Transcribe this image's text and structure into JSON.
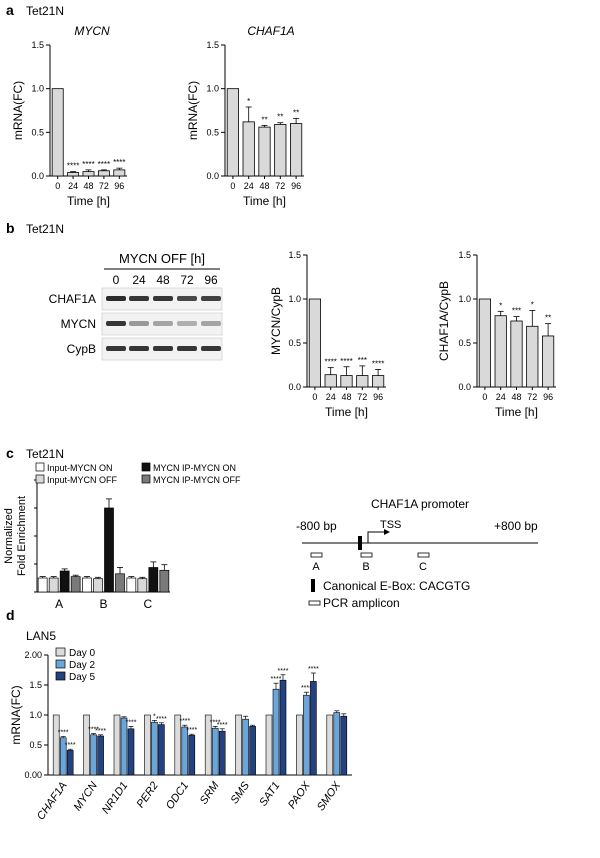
{
  "colors": {
    "light": "#d9d9d9",
    "black": "#111111",
    "gray": "#7a7a7a",
    "white": "#ffffff",
    "day0": "#dcdcdc",
    "day2": "#6aa6dc",
    "day5": "#23427f",
    "lane": "#f2f2f2",
    "ebox": "#000000"
  },
  "panel_a": {
    "label": "a",
    "cell_line": "Tet21N"
  },
  "panel_b": {
    "label": "b",
    "cell_line": "Tet21N",
    "blot": {
      "header": "MYCN OFF [h]",
      "timepoints": [
        "0",
        "24",
        "48",
        "72",
        "96"
      ],
      "rows": [
        {
          "label": "CHAF1A",
          "intensity": [
            0.85,
            0.8,
            0.8,
            0.72,
            0.75
          ]
        },
        {
          "label": "MYCN",
          "intensity": [
            0.8,
            0.35,
            0.3,
            0.25,
            0.3
          ]
        },
        {
          "label": "CypB",
          "intensity": [
            0.8,
            0.8,
            0.8,
            0.8,
            0.8
          ]
        }
      ]
    }
  },
  "panel_c": {
    "label": "c",
    "cell_line": "Tet21N",
    "legend": [
      "Input-MYCN ON",
      "Input-MYCN OFF",
      "MYCN IP-MYCN ON",
      "MYCN IP-MYCN OFF"
    ],
    "promoter": {
      "title": "CHAF1A promoter",
      "left_label": "-800 bp",
      "right_label": "+800 bp",
      "tss_label": "TSS",
      "amplicons": [
        "A",
        "B",
        "C"
      ],
      "ebox_label": "Canonical E-Box: CACGTG",
      "amplicon_label": "PCR amplicon"
    }
  },
  "panel_d": {
    "label": "d",
    "cell_line": "LAN5"
  },
  "chart_data": [
    {
      "id": "a-mycn",
      "type": "bar",
      "title": "MYCN",
      "xlabel": "Time [h]",
      "ylabel": "mRNA(FC)",
      "categories": [
        "0",
        "24",
        "48",
        "72",
        "96"
      ],
      "values": [
        1.0,
        0.04,
        0.05,
        0.06,
        0.07
      ],
      "errors": [
        0,
        0.01,
        0.02,
        0.01,
        0.02
      ],
      "significance": [
        "",
        "****",
        "****",
        "****",
        "****"
      ],
      "ylim": [
        0,
        1.5
      ],
      "yticks": [
        "0.0",
        "0.5",
        "1.0",
        "1.5"
      ]
    },
    {
      "id": "a-chaf1a",
      "type": "bar",
      "title": "CHAF1A",
      "xlabel": "Time [h]",
      "ylabel": "mRNA(FC)",
      "categories": [
        "0",
        "24",
        "48",
        "72",
        "96"
      ],
      "values": [
        1.0,
        0.62,
        0.56,
        0.59,
        0.6
      ],
      "errors": [
        0,
        0.17,
        0.02,
        0.02,
        0.06
      ],
      "significance": [
        "",
        "*",
        "**",
        "**",
        "**"
      ],
      "ylim": [
        0,
        1.5
      ],
      "yticks": [
        "0.0",
        "0.5",
        "1.0",
        "1.5"
      ]
    },
    {
      "id": "b-mycn-cypb",
      "type": "bar",
      "xlabel": "Time [h]",
      "ylabel": "MYCN/CypB",
      "categories": [
        "0",
        "24",
        "48",
        "72",
        "96"
      ],
      "values": [
        1.0,
        0.14,
        0.13,
        0.13,
        0.13
      ],
      "errors": [
        0,
        0.08,
        0.1,
        0.11,
        0.07
      ],
      "significance": [
        "",
        "****",
        "****",
        "***",
        "****"
      ],
      "ylim": [
        0,
        1.5
      ],
      "yticks": [
        "0.0",
        "0.5",
        "1.0",
        "1.5"
      ]
    },
    {
      "id": "b-chaf1a-cypb",
      "type": "bar",
      "xlabel": "Time [h]",
      "ylabel": "CHAF1A/CypB",
      "categories": [
        "0",
        "24",
        "48",
        "72",
        "96"
      ],
      "values": [
        1.0,
        0.81,
        0.75,
        0.69,
        0.58
      ],
      "errors": [
        0,
        0.05,
        0.05,
        0.18,
        0.14
      ],
      "significance": [
        "",
        "*",
        "***",
        "*",
        "**"
      ],
      "ylim": [
        0,
        1.5
      ],
      "yticks": [
        "0.0",
        "0.5",
        "1.0",
        "1.5"
      ]
    },
    {
      "id": "c-chip",
      "type": "bar",
      "ylabel": "Normalized Fold Enrichment",
      "categories": [
        "A",
        "B",
        "C"
      ],
      "series": [
        {
          "name": "Input-MYCN ON",
          "color": "#ffffff",
          "values": [
            1.0,
            1.0,
            1.0
          ],
          "errors": [
            0.1,
            0.1,
            0.1
          ]
        },
        {
          "name": "Input-MYCN OFF",
          "color": "#d9d9d9",
          "values": [
            1.0,
            0.95,
            0.95
          ],
          "errors": [
            0.1,
            0.1,
            0.1
          ]
        },
        {
          "name": "MYCN IP-MYCN ON",
          "color": "#111111",
          "values": [
            1.5,
            6.0,
            1.75
          ],
          "errors": [
            0.15,
            0.65,
            0.4
          ]
        },
        {
          "name": "MYCN IP-MYCN OFF",
          "color": "#7a7a7a",
          "values": [
            1.1,
            1.3,
            1.55
          ],
          "errors": [
            0.1,
            0.45,
            0.4
          ]
        }
      ],
      "ylim": [
        0,
        8
      ]
    },
    {
      "id": "d-lan5",
      "type": "bar",
      "ylabel": "mRNA(FC)",
      "categories": [
        "CHAF1A",
        "MYCN",
        "NR1D1",
        "PER2",
        "ODC1",
        "SRM",
        "SMS",
        "SAT1",
        "PAOX",
        "SMOX"
      ],
      "series": [
        {
          "name": "Day 0",
          "color": "#dcdcdc",
          "values": [
            1.0,
            1.0,
            1.0,
            1.0,
            1.0,
            1.0,
            1.0,
            1.0,
            1.0,
            1.0
          ],
          "errors": [
            0,
            0,
            0,
            0,
            0,
            0,
            0,
            0,
            0,
            0
          ],
          "significance": [
            "",
            "",
            "",
            "",
            "",
            "",
            "",
            "",
            "",
            ""
          ]
        },
        {
          "name": "Day 2",
          "color": "#6aa6dc",
          "values": [
            0.62,
            0.67,
            0.95,
            0.88,
            0.8,
            0.78,
            0.93,
            1.43,
            1.33,
            1.04
          ],
          "errors": [
            0.02,
            0.02,
            0.02,
            0.03,
            0.03,
            0.03,
            0.05,
            0.1,
            0.05,
            0.03
          ],
          "significance": [
            "****",
            "****",
            "",
            "*",
            "****",
            "****",
            "",
            "****",
            "****",
            ""
          ]
        },
        {
          "name": "Day 5",
          "color": "#23427f",
          "values": [
            0.41,
            0.65,
            0.77,
            0.84,
            0.66,
            0.73,
            0.81,
            1.58,
            1.56,
            0.98
          ],
          "errors": [
            0.02,
            0.02,
            0.04,
            0.03,
            0.02,
            0.04,
            0.02,
            0.09,
            0.14,
            0.04
          ],
          "significance": [
            "****",
            "****",
            "****",
            "****",
            "****",
            "****",
            "",
            "****",
            "****",
            ""
          ]
        }
      ],
      "ylim": [
        0,
        2.0
      ],
      "yticks": [
        "0.00",
        "0.5",
        "1.0",
        "1.5",
        "2.00"
      ]
    }
  ]
}
